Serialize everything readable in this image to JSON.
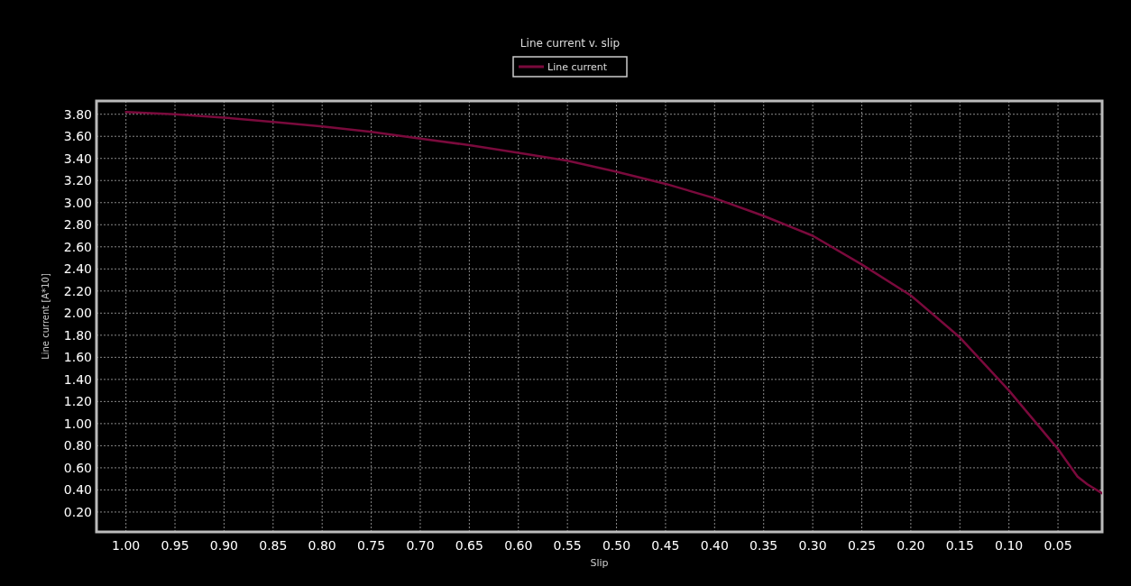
{
  "chart_data": {
    "type": "line",
    "title": "Line current v. slip",
    "xlabel": "Slip",
    "ylabel": "Line current [A*10]",
    "xlim": [
      1.03,
      0.005
    ],
    "xticks": [
      {
        "value": 1,
        "label": "1.00"
      },
      {
        "value": 0.95,
        "label": "0.95"
      },
      {
        "value": 0.9,
        "label": "0.90"
      },
      {
        "value": 0.85,
        "label": "0.85"
      },
      {
        "value": 0.8,
        "label": "0.80"
      },
      {
        "value": 0.75,
        "label": "0.75"
      },
      {
        "value": 0.7,
        "label": "0.70"
      },
      {
        "value": 0.65,
        "label": "0.65"
      },
      {
        "value": 0.6,
        "label": "0.60"
      },
      {
        "value": 0.55,
        "label": "0.55"
      },
      {
        "value": 0.5,
        "label": "0.50"
      },
      {
        "value": 0.45,
        "label": "0.45"
      },
      {
        "value": 0.4,
        "label": "0.40"
      },
      {
        "value": 0.35,
        "label": "0.35"
      },
      {
        "value": 0.3,
        "label": "0.30"
      },
      {
        "value": 0.25,
        "label": "0.25"
      },
      {
        "value": 0.2,
        "label": "0.20"
      },
      {
        "value": 0.15,
        "label": "0.15"
      },
      {
        "value": 0.1,
        "label": "0.10"
      },
      {
        "value": 0.05,
        "label": "0.05"
      }
    ],
    "ylim": [
      0.02,
      3.92
    ],
    "yticks": [
      {
        "value": 0.2,
        "label": "0.20"
      },
      {
        "value": 0.4,
        "label": "0.40"
      },
      {
        "value": 0.6,
        "label": "0.60"
      },
      {
        "value": 0.8,
        "label": "0.80"
      },
      {
        "value": 1,
        "label": "1.00"
      },
      {
        "value": 1.2,
        "label": "1.20"
      },
      {
        "value": 1.4,
        "label": "1.40"
      },
      {
        "value": 1.6,
        "label": "1.60"
      },
      {
        "value": 1.8,
        "label": "1.80"
      },
      {
        "value": 2,
        "label": "2.00"
      },
      {
        "value": 2.2,
        "label": "2.20"
      },
      {
        "value": 2.4,
        "label": "2.40"
      },
      {
        "value": 2.6,
        "label": "2.60"
      },
      {
        "value": 2.8,
        "label": "2.80"
      },
      {
        "value": 3,
        "label": "3.00"
      },
      {
        "value": 3.2,
        "label": "3.20"
      },
      {
        "value": 3.4,
        "label": "3.40"
      },
      {
        "value": 3.6,
        "label": "3.60"
      },
      {
        "value": 3.8,
        "label": "3.80"
      }
    ],
    "grid": true,
    "legend": "top",
    "line_style": "solid",
    "x": [
      1.0,
      0.95,
      0.9,
      0.85,
      0.8,
      0.75,
      0.7,
      0.65,
      0.6,
      0.55,
      0.5,
      0.45,
      0.4,
      0.35,
      0.3,
      0.25,
      0.2,
      0.15,
      0.1,
      0.05,
      0.03,
      0.02,
      0.005
    ],
    "series": [
      {
        "name": "Line current",
        "color": "#7a0a3c",
        "values": [
          3.82,
          3.8,
          3.77,
          3.73,
          3.69,
          3.64,
          3.58,
          3.52,
          3.45,
          3.38,
          3.28,
          3.17,
          3.04,
          2.88,
          2.7,
          2.44,
          2.16,
          1.78,
          1.3,
          0.77,
          0.52,
          0.45,
          0.37
        ]
      }
    ]
  }
}
